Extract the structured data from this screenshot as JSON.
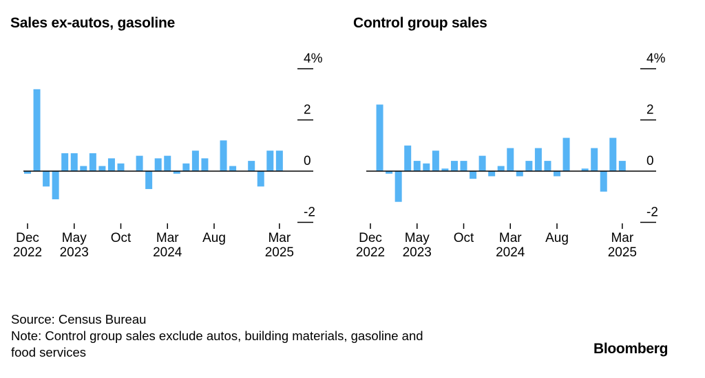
{
  "brand": "Bloomberg",
  "footer": {
    "source": "Source: Census Bureau",
    "note_line1": "Note: Control group sales exclude autos, building materials, gasoline and",
    "note_line2": "food services"
  },
  "colors": {
    "bar": "#56b4f5",
    "axis": "#000000"
  },
  "chart_data": [
    {
      "type": "bar",
      "title": "Sales ex-autos, gasoline",
      "xlabel": "",
      "ylabel": "",
      "ylim": [
        -2.1,
        4
      ],
      "y_ticks": [
        {
          "value": 4,
          "label": "4%"
        },
        {
          "value": 2,
          "label": "2"
        },
        {
          "value": 0,
          "label": "0"
        },
        {
          "value": -2,
          "label": "-2"
        }
      ],
      "x_ticks": [
        {
          "index": 0,
          "month": "Dec",
          "year": "2022"
        },
        {
          "index": 5,
          "month": "May",
          "year": "2023"
        },
        {
          "index": 10,
          "month": "Oct",
          "year": ""
        },
        {
          "index": 15,
          "month": "Mar",
          "year": "2024"
        },
        {
          "index": 20,
          "month": "Aug",
          "year": ""
        },
        {
          "index": 27,
          "month": "Mar",
          "year": "2025"
        }
      ],
      "categories": [
        "Dec 2022",
        "Jan 2023",
        "Feb 2023",
        "Mar 2023",
        "Apr 2023",
        "May 2023",
        "Jun 2023",
        "Jul 2023",
        "Aug 2023",
        "Sep 2023",
        "Oct 2023",
        "Nov 2023",
        "Dec 2023",
        "Jan 2024",
        "Feb 2024",
        "Mar 2024",
        "Apr 2024",
        "May 2024",
        "Jun 2024",
        "Jul 2024",
        "Aug 2024",
        "Sep 2024",
        "Oct 2024",
        "Nov 2024",
        "Dec 2024",
        "Jan 2025",
        "Feb 2025",
        "Mar 2025"
      ],
      "values": [
        -0.1,
        3.2,
        -0.6,
        -1.1,
        0.7,
        0.7,
        0.2,
        0.7,
        0.2,
        0.5,
        0.3,
        0.0,
        0.6,
        -0.7,
        0.5,
        0.6,
        -0.1,
        0.3,
        0.8,
        0.5,
        0.0,
        1.2,
        0.2,
        0.0,
        0.4,
        -0.6,
        0.8,
        0.8
      ]
    },
    {
      "type": "bar",
      "title": "Control group sales",
      "xlabel": "",
      "ylabel": "",
      "ylim": [
        -2.1,
        4
      ],
      "y_ticks": [
        {
          "value": 4,
          "label": "4%"
        },
        {
          "value": 2,
          "label": "2"
        },
        {
          "value": 0,
          "label": "0"
        },
        {
          "value": -2,
          "label": "-2"
        }
      ],
      "x_ticks": [
        {
          "index": 0,
          "month": "Dec",
          "year": "2022"
        },
        {
          "index": 5,
          "month": "May",
          "year": "2023"
        },
        {
          "index": 10,
          "month": "Oct",
          "year": ""
        },
        {
          "index": 15,
          "month": "Mar",
          "year": "2024"
        },
        {
          "index": 20,
          "month": "Aug",
          "year": ""
        },
        {
          "index": 27,
          "month": "Mar",
          "year": "2025"
        }
      ],
      "categories": [
        "Dec 2022",
        "Jan 2023",
        "Feb 2023",
        "Mar 2023",
        "Apr 2023",
        "May 2023",
        "Jun 2023",
        "Jul 2023",
        "Aug 2023",
        "Sep 2023",
        "Oct 2023",
        "Nov 2023",
        "Dec 2023",
        "Jan 2024",
        "Feb 2024",
        "Mar 2024",
        "Apr 2024",
        "May 2024",
        "Jun 2024",
        "Jul 2024",
        "Aug 2024",
        "Sep 2024",
        "Oct 2024",
        "Nov 2024",
        "Dec 2024",
        "Jan 2025",
        "Feb 2025",
        "Mar 2025"
      ],
      "values": [
        0.0,
        2.6,
        -0.1,
        -1.2,
        1.0,
        0.4,
        0.3,
        0.8,
        0.1,
        0.4,
        0.4,
        -0.3,
        0.6,
        -0.2,
        0.2,
        0.9,
        -0.2,
        0.4,
        0.9,
        0.4,
        -0.2,
        1.3,
        0.0,
        0.1,
        0.9,
        -0.8,
        1.3,
        0.4
      ]
    }
  ]
}
